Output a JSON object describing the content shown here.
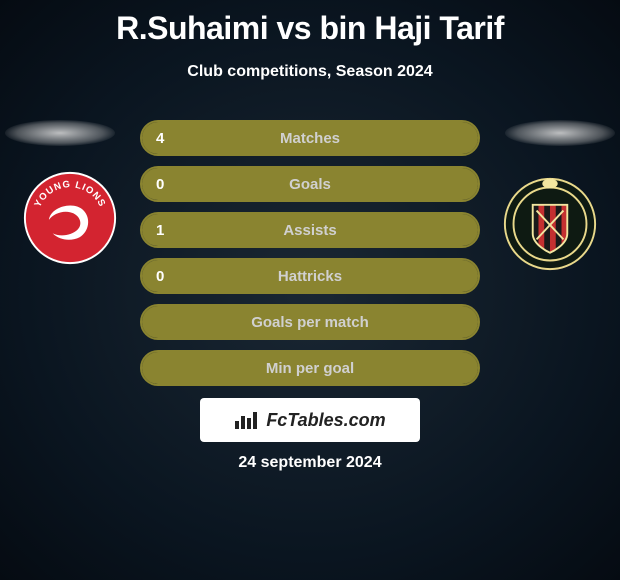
{
  "title": "R.Suhaimi vs bin Haji Tarif",
  "subtitle": "Club competitions, Season 2024",
  "date": "24 september 2024",
  "watermark": "FcTables.com",
  "colors": {
    "bar_fill": "#8a8430",
    "bar_border": "#8a8430",
    "title_text": "#ffffff",
    "label_text": "#d0d0d0",
    "value_text": "#ffffff"
  },
  "left_crest": {
    "name": "Young Lions",
    "bg": "#d32430",
    "ring_bg": "#ffffff",
    "text": "YOUNG LIONS",
    "text_color": "#d32430"
  },
  "right_crest": {
    "name": "DPMM FC",
    "stripe_a": "#1a1a1a",
    "stripe_b": "#c43030",
    "ring": "#e9d98b",
    "top": "#f2e6a0"
  },
  "stats": [
    {
      "label": "Matches",
      "left_value": "4",
      "right_value": "",
      "fill_mode": "full"
    },
    {
      "label": "Goals",
      "left_value": "0",
      "right_value": "",
      "fill_mode": "full"
    },
    {
      "label": "Assists",
      "left_value": "1",
      "right_value": "",
      "fill_mode": "full"
    },
    {
      "label": "Hattricks",
      "left_value": "0",
      "right_value": "",
      "fill_mode": "full"
    },
    {
      "label": "Goals per match",
      "left_value": "",
      "right_value": "",
      "fill_mode": "full"
    },
    {
      "label": "Min per goal",
      "left_value": "",
      "right_value": "",
      "fill_mode": "full"
    }
  ]
}
